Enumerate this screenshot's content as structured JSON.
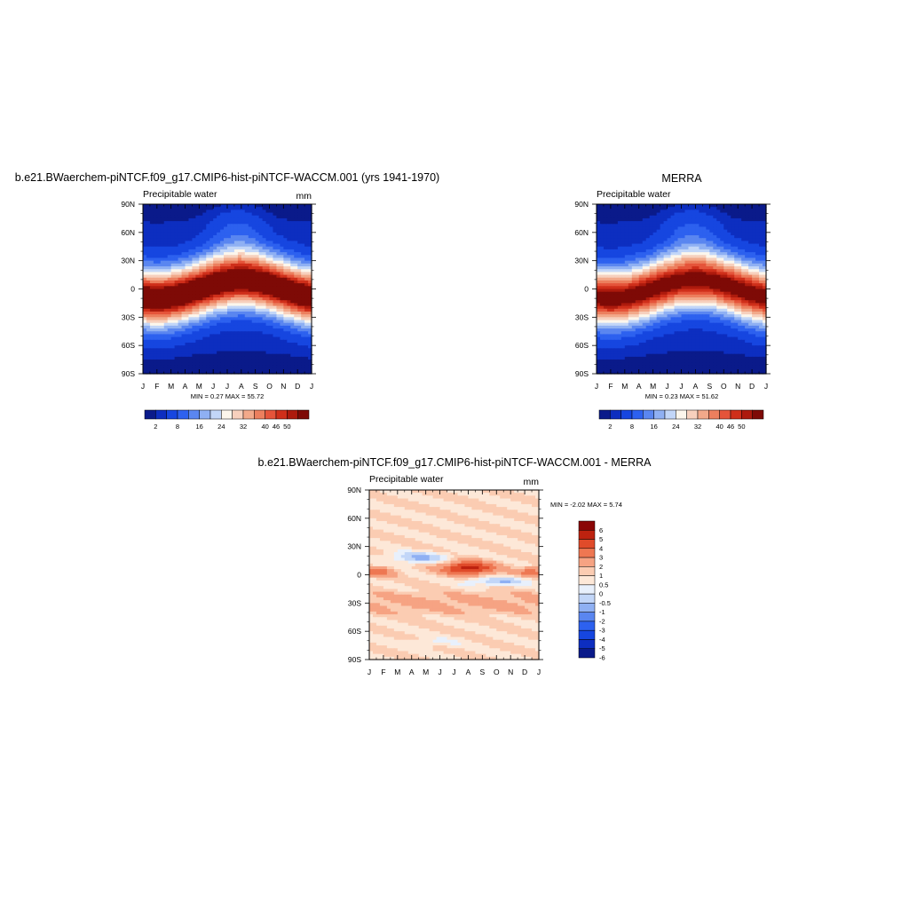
{
  "palette": {
    "abs": [
      "#0a1a8a",
      "#0d2ec0",
      "#1646e0",
      "#2d61ef",
      "#5a86f0",
      "#8fb0f3",
      "#c2d6f8",
      "#fcf6ec",
      "#f7d0bd",
      "#f2a98a",
      "#ec7f5e",
      "#e5543a",
      "#cf2f1a",
      "#ad1a0d",
      "#7e0a06"
    ],
    "diff": [
      "#0a1a8a",
      "#0d2ec0",
      "#1646e0",
      "#2d61ef",
      "#5a86f0",
      "#8fb0f3",
      "#c2d6f8",
      "#e8f0fc",
      "#fde8d8",
      "#fbccb2",
      "#f6a383",
      "#ee7752",
      "#e04b2a",
      "#bd220f",
      "#8a0505"
    ]
  },
  "chart_data": [
    {
      "type": "heatmap",
      "id": "model",
      "title": "b.e21.BWaerchem-piNTCF.f09_g17.CMIP6-hist-piNTCF-WACCM.001 (yrs 1941-1970)",
      "subtitle_left": "Precipitable water",
      "subtitle_right": "mm",
      "x_ticks": [
        "J",
        "F",
        "M",
        "A",
        "M",
        "J",
        "J",
        "A",
        "S",
        "O",
        "N",
        "D",
        "J"
      ],
      "y_ticks": [
        "90N",
        "60N",
        "30N",
        "0",
        "30S",
        "60S",
        "90S"
      ],
      "ylim": [
        -90,
        90
      ],
      "min": 0.27,
      "max": 55.72,
      "minmax_text": "MIN =   0.27 MAX =  55.72",
      "equator_peak": 55,
      "colorbar_labels": [
        "2",
        "8",
        "16",
        "24",
        "32",
        "40",
        "46",
        "50"
      ],
      "colorbar_levels": [
        2,
        4,
        8,
        12,
        16,
        20,
        24,
        28,
        32,
        36,
        40,
        43,
        46,
        48,
        50
      ]
    },
    {
      "type": "heatmap",
      "id": "obs",
      "title": "MERRA",
      "subtitle_left": "Precipitable water",
      "subtitle_right": "",
      "x_ticks": [
        "J",
        "F",
        "M",
        "A",
        "M",
        "J",
        "J",
        "A",
        "S",
        "O",
        "N",
        "D",
        "J"
      ],
      "y_ticks": [
        "90N",
        "60N",
        "30N",
        "0",
        "30S",
        "60S",
        "90S"
      ],
      "ylim": [
        -90,
        90
      ],
      "min": 0.23,
      "max": 51.62,
      "minmax_text": "MIN =   0.23 MAX =  51.62",
      "equator_peak": 51,
      "colorbar_labels": [
        "2",
        "8",
        "16",
        "24",
        "32",
        "40",
        "46",
        "50"
      ],
      "colorbar_levels": [
        2,
        4,
        8,
        12,
        16,
        20,
        24,
        28,
        32,
        36,
        40,
        43,
        46,
        48,
        50
      ]
    },
    {
      "type": "heatmap",
      "id": "diff",
      "title": "b.e21.BWaerchem-piNTCF.f09_g17.CMIP6-hist-piNTCF-WACCM.001 - MERRA",
      "subtitle_left": "Precipitable water",
      "subtitle_right": "mm",
      "x_ticks": [
        "J",
        "F",
        "M",
        "A",
        "M",
        "J",
        "J",
        "A",
        "S",
        "O",
        "N",
        "D",
        "J"
      ],
      "y_ticks": [
        "90N",
        "60N",
        "30N",
        "0",
        "30S",
        "60S",
        "90S"
      ],
      "ylim": [
        -90,
        90
      ],
      "min": -2.02,
      "max": 5.74,
      "minmax_text": "MIN =  -2.02 MAX =   5.74",
      "colorbar_labels": [
        "6",
        "5",
        "4",
        "3",
        "2",
        "1",
        "0.5",
        "0",
        "-0.5",
        "-1",
        "-2",
        "-3",
        "-4",
        "-5",
        "-6"
      ],
      "colorbar_levels": [
        -6,
        -5,
        -4,
        -3,
        -2,
        -1,
        -0.5,
        0,
        0.5,
        1,
        2,
        3,
        4,
        5,
        6
      ]
    }
  ]
}
